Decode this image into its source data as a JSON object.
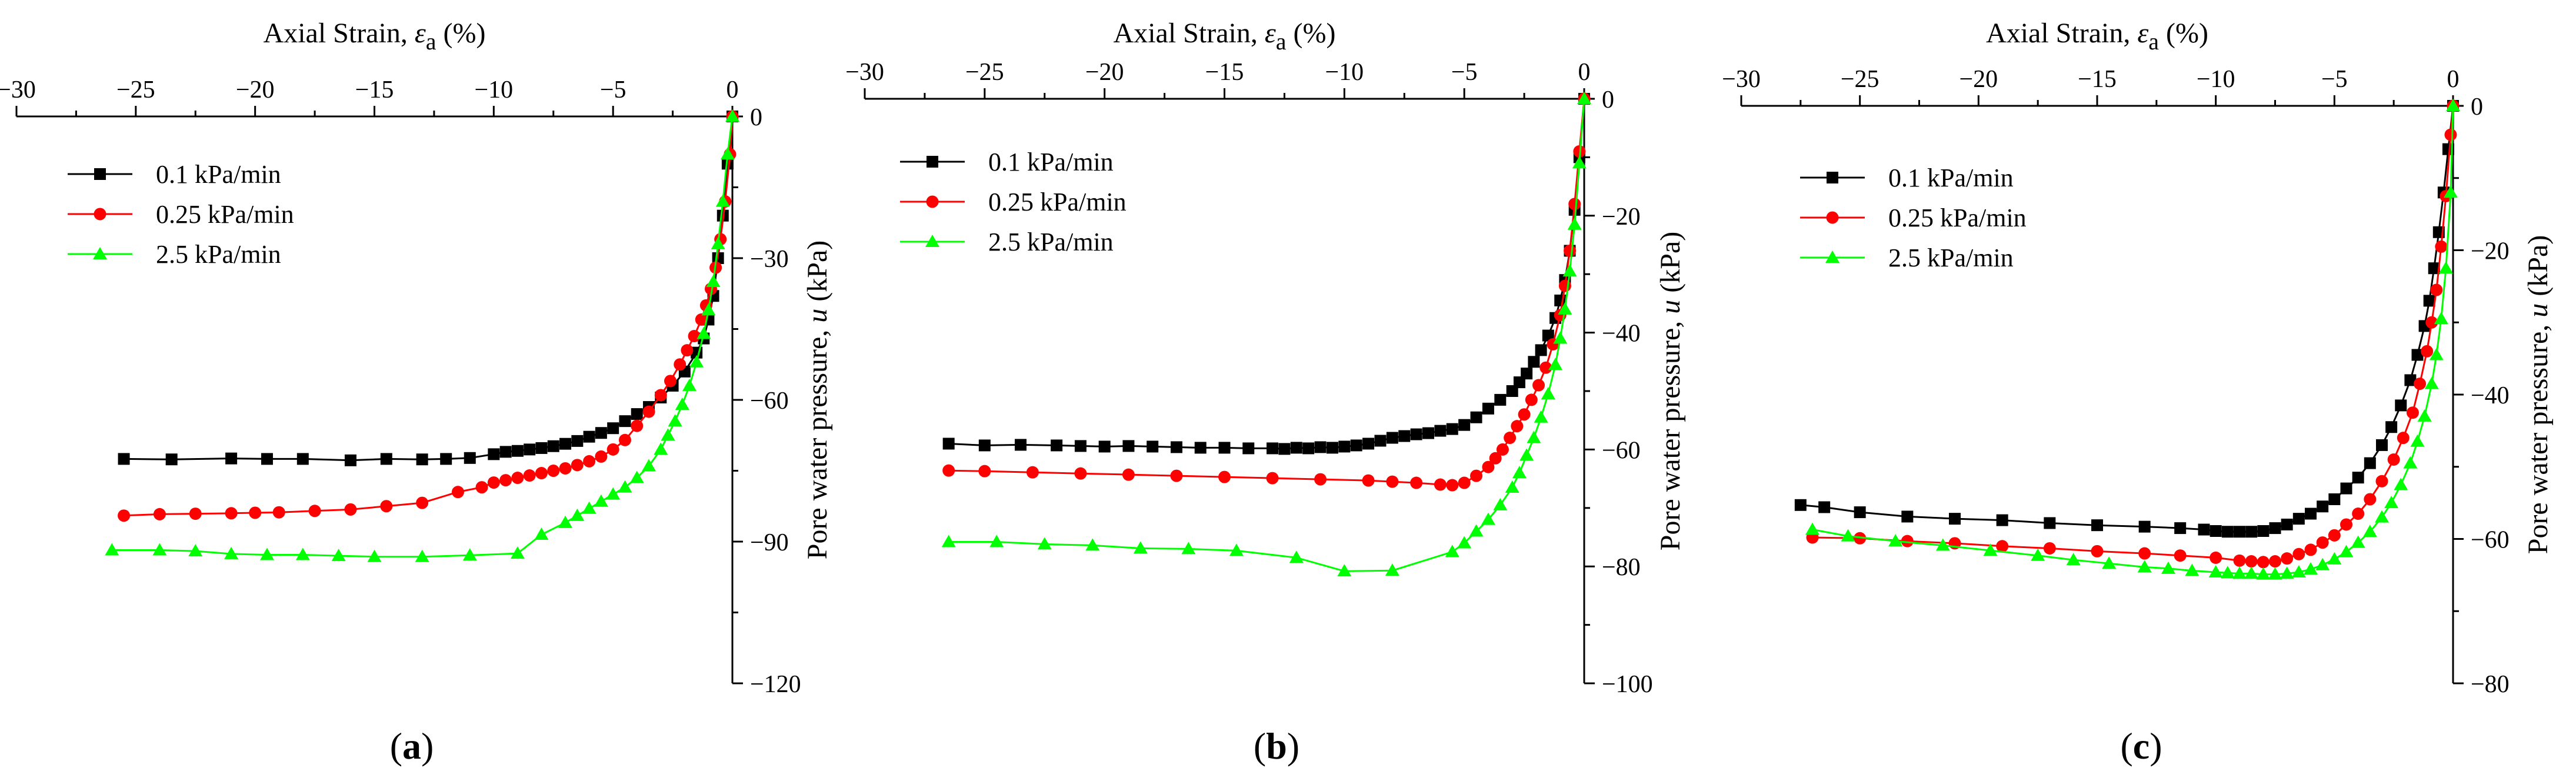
{
  "series_styles": [
    {
      "color": "#000000",
      "marker": "square"
    },
    {
      "color": "#ff0000",
      "marker": "circle"
    },
    {
      "color": "#00ff00",
      "marker": "triangle"
    }
  ],
  "chart_data": [
    {
      "type": "line",
      "panel_label": "a",
      "xlabel_main": "Axial Strain, ",
      "xlabel_symbol": "ε",
      "xlabel_sub": "a",
      "xlabel_unit": " (%)",
      "ylabel_main": "Pore water pressure, ",
      "ylabel_symbol": "u",
      "ylabel_unit": " (kPa)",
      "xlim": [
        -30,
        0
      ],
      "ylim": [
        -120,
        0
      ],
      "xticks": [
        -30,
        -25,
        -20,
        -15,
        -10,
        -5,
        0
      ],
      "yticks": [
        0,
        -30,
        -60,
        -90,
        -120
      ],
      "legend_position": "top-left",
      "series": [
        {
          "name": "0.1  kPa/min",
          "x": [
            -25.5,
            -23.5,
            -21,
            -19.5,
            -18,
            -16,
            -14.5,
            -13,
            -12,
            -11,
            -10,
            -9.5,
            -9,
            -8.5,
            -8,
            -7.5,
            -7,
            -6.5,
            -6,
            -5.5,
            -5,
            -4.5,
            -4,
            -3.5,
            -3,
            -2.5,
            -2,
            -1.5,
            -1.2,
            -1,
            -0.8,
            -0.6,
            -0.4,
            -0.2,
            0
          ],
          "y": [
            -72.5,
            -72.6,
            -72.4,
            -72.5,
            -72.5,
            -72.8,
            -72.5,
            -72.6,
            -72.5,
            -72.3,
            -71.5,
            -71,
            -70.8,
            -70.5,
            -70.2,
            -69.8,
            -69.3,
            -68.7,
            -67.8,
            -67,
            -66,
            -64.5,
            -63,
            -61.5,
            -59.5,
            -57,
            -54,
            -50,
            -47,
            -43,
            -38,
            -30,
            -21,
            -10,
            0
          ]
        },
        {
          "name": "0.25 kPa/min",
          "x": [
            -25.5,
            -24,
            -22.5,
            -21,
            -20,
            -19,
            -17.5,
            -16,
            -14.5,
            -13,
            -11.5,
            -10.5,
            -10,
            -9.5,
            -9,
            -8.5,
            -8,
            -7.5,
            -7,
            -6.5,
            -6,
            -5.5,
            -5,
            -4.5,
            -4,
            -3.5,
            -3,
            -2.6,
            -2.2,
            -1.9,
            -1.6,
            -1.3,
            -1.1,
            -0.9,
            -0.7,
            -0.5,
            -0.3,
            -0.1,
            0
          ],
          "y": [
            -84.5,
            -84.2,
            -84.1,
            -84,
            -83.9,
            -83.8,
            -83.5,
            -83.2,
            -82.5,
            -81.8,
            -79.5,
            -78.5,
            -77.5,
            -77,
            -76.5,
            -76,
            -75.5,
            -75,
            -74.5,
            -73.8,
            -73,
            -72,
            -70.5,
            -68.5,
            -65.5,
            -62.5,
            -59,
            -56,
            -52.5,
            -49.5,
            -46.5,
            -43,
            -40,
            -36.5,
            -32,
            -26,
            -18,
            -8,
            0
          ]
        },
        {
          "name": "2.5  kPa/min",
          "x": [
            -26,
            -24,
            -22.5,
            -21,
            -19.5,
            -18,
            -16.5,
            -15,
            -13,
            -11,
            -9,
            -8,
            -7,
            -6.5,
            -6,
            -5.5,
            -5,
            -4.5,
            -4,
            -3.5,
            -3,
            -2.7,
            -2.4,
            -2.1,
            -1.8,
            -1.5,
            -1.2,
            -1,
            -0.8,
            -0.6,
            -0.4,
            -0.2,
            0
          ],
          "y": [
            -91.8,
            -91.8,
            -92,
            -92.6,
            -92.8,
            -92.8,
            -93,
            -93.2,
            -93.2,
            -92.9,
            -92.5,
            -88.5,
            -86,
            -84.5,
            -83,
            -81.5,
            -80,
            -78.5,
            -76.5,
            -74,
            -70.5,
            -67.5,
            -64.5,
            -61,
            -57,
            -52,
            -46,
            -41,
            -35,
            -27,
            -18,
            -8,
            0
          ]
        }
      ]
    },
    {
      "type": "line",
      "panel_label": "b",
      "xlabel_main": "Axial Strain, ",
      "xlabel_symbol": "ε",
      "xlabel_sub": "a",
      "xlabel_unit": " (%)",
      "ylabel_main": "Pore water pressure, ",
      "ylabel_symbol": "u",
      "ylabel_unit": " (kPa)",
      "xlim": [
        -30,
        0
      ],
      "ylim": [
        -100,
        0
      ],
      "xticks": [
        -30,
        -25,
        -20,
        -15,
        -10,
        -5,
        0
      ],
      "yticks": [
        0,
        -20,
        -40,
        -60,
        -80,
        -100
      ],
      "legend_position": "top-left",
      "series": [
        {
          "name": "0.1  kPa/min",
          "x": [
            -26.5,
            -25,
            -23.5,
            -22,
            -21,
            -20,
            -19,
            -18,
            -17,
            -16,
            -15,
            -14,
            -13,
            -12.5,
            -12,
            -11.5,
            -11,
            -10.5,
            -10,
            -9.5,
            -9,
            -8.5,
            -8,
            -7.5,
            -7,
            -6.5,
            -6,
            -5.5,
            -5,
            -4.5,
            -4,
            -3.5,
            -3,
            -2.7,
            -2.4,
            -2.1,
            -1.8,
            -1.5,
            -1.2,
            -1,
            -0.8,
            -0.6,
            -0.4,
            -0.2,
            0
          ],
          "y": [
            -59,
            -59.3,
            -59.2,
            -59.3,
            -59.4,
            -59.5,
            -59.4,
            -59.5,
            -59.6,
            -59.7,
            -59.7,
            -59.8,
            -59.8,
            -59.9,
            -59.7,
            -59.8,
            -59.6,
            -59.7,
            -59.5,
            -59.3,
            -59,
            -58.5,
            -58,
            -57.7,
            -57.4,
            -57.2,
            -56.8,
            -56.5,
            -55.8,
            -54.5,
            -53,
            -51.5,
            -50,
            -48.5,
            -47,
            -45,
            -43,
            -40.5,
            -37.5,
            -34.5,
            -31,
            -26,
            -19,
            -10,
            0
          ]
        },
        {
          "name": "0.25 kPa/min",
          "x": [
            -26.5,
            -25,
            -23,
            -21,
            -19,
            -17,
            -15,
            -13,
            -11,
            -9,
            -8,
            -7,
            -6,
            -5.5,
            -5,
            -4.5,
            -4,
            -3.7,
            -3.4,
            -3.1,
            -2.8,
            -2.5,
            -2.2,
            -1.9,
            -1.6,
            -1.3,
            -1,
            -0.8,
            -0.6,
            -0.4,
            -0.2,
            0
          ],
          "y": [
            -63.6,
            -63.7,
            -63.9,
            -64.1,
            -64.3,
            -64.5,
            -64.7,
            -64.9,
            -65.1,
            -65.3,
            -65.5,
            -65.7,
            -66,
            -66.1,
            -65.7,
            -64.5,
            -63,
            -61.5,
            -60,
            -58,
            -56,
            -54,
            -51.5,
            -49,
            -46,
            -42,
            -37,
            -32,
            -26,
            -18,
            -9,
            0
          ]
        },
        {
          "name": "2.5  kPa/min",
          "x": [
            -26.5,
            -24.5,
            -22.5,
            -20.5,
            -18.5,
            -16.5,
            -14.5,
            -12,
            -10,
            -8,
            -5.5,
            -5,
            -4.5,
            -4,
            -3.5,
            -3,
            -2.7,
            -2.4,
            -2.1,
            -1.8,
            -1.5,
            -1.2,
            -1,
            -0.8,
            -0.6,
            -0.4,
            -0.2,
            0
          ],
          "y": [
            -75.8,
            -75.8,
            -76.2,
            -76.4,
            -76.9,
            -77,
            -77.3,
            -78.5,
            -80.8,
            -80.7,
            -77.5,
            -76,
            -74,
            -72,
            -69.5,
            -66.5,
            -64,
            -61,
            -58,
            -54.5,
            -50.5,
            -45.5,
            -41,
            -36,
            -29.5,
            -21.5,
            -11,
            0
          ]
        }
      ]
    },
    {
      "type": "line",
      "panel_label": "c",
      "xlabel_main": "Axial Strain, ",
      "xlabel_symbol": "ε",
      "xlabel_sub": "a",
      "xlabel_unit": " (%)",
      "ylabel_main": "Pore water pressure, ",
      "ylabel_symbol": "u",
      "ylabel_unit": " (kPa)",
      "xlim": [
        -30,
        0
      ],
      "ylim": [
        -80,
        0
      ],
      "xticks": [
        -30,
        -25,
        -20,
        -15,
        -10,
        -5,
        0
      ],
      "yticks": [
        0,
        -20,
        -40,
        -60,
        -80
      ],
      "legend_position": "top-left",
      "series": [
        {
          "name": "0.1  kPa/min",
          "x": [
            -27.5,
            -26.5,
            -25,
            -23,
            -21,
            -19,
            -17,
            -15,
            -13,
            -11.5,
            -10.5,
            -10,
            -9.5,
            -9,
            -8.5,
            -8,
            -7.5,
            -7,
            -6.5,
            -6,
            -5.5,
            -5,
            -4.5,
            -4,
            -3.5,
            -3,
            -2.6,
            -2.2,
            -1.8,
            -1.5,
            -1.2,
            -1,
            -0.8,
            -0.6,
            -0.4,
            -0.2,
            0
          ],
          "y": [
            -55.3,
            -55.6,
            -56.3,
            -56.9,
            -57.2,
            -57.4,
            -57.8,
            -58.1,
            -58.3,
            -58.5,
            -58.7,
            -58.9,
            -59,
            -59,
            -59,
            -58.9,
            -58.5,
            -58,
            -57.2,
            -56.5,
            -55.5,
            -54.5,
            -53,
            -51.5,
            -49.5,
            -47,
            -44.5,
            -41.5,
            -38,
            -34.5,
            -30.5,
            -27,
            -22.5,
            -17.5,
            -12,
            -6,
            0
          ]
        },
        {
          "name": "0.25 kPa/min",
          "x": [
            -27,
            -25,
            -23,
            -21,
            -19,
            -17,
            -15,
            -13,
            -11.5,
            -10,
            -9,
            -8.5,
            -8,
            -7.5,
            -7,
            -6.5,
            -6,
            -5.5,
            -5,
            -4.5,
            -4,
            -3.5,
            -3,
            -2.5,
            -2.1,
            -1.7,
            -1.4,
            -1.1,
            -0.9,
            -0.7,
            -0.5,
            -0.3,
            -0.1,
            0
          ],
          "y": [
            -59.8,
            -59.9,
            -60.3,
            -60.6,
            -61,
            -61.3,
            -61.7,
            -62,
            -62.3,
            -62.6,
            -63,
            -63.1,
            -63.2,
            -63.1,
            -62.7,
            -62.1,
            -61.5,
            -60.5,
            -59.5,
            -58,
            -56.5,
            -54.5,
            -52,
            -49,
            -46,
            -42.5,
            -38.5,
            -34,
            -30,
            -25.5,
            -19.5,
            -12.5,
            -4,
            0
          ]
        },
        {
          "name": "2.5  kPa/min",
          "x": [
            -27,
            -25.5,
            -23.5,
            -21.5,
            -19.5,
            -17.5,
            -16,
            -14.5,
            -13,
            -12,
            -11,
            -10,
            -9.5,
            -9,
            -8.5,
            -8,
            -7.5,
            -7,
            -6.5,
            -6,
            -5.5,
            -5,
            -4.5,
            -4,
            -3.5,
            -3,
            -2.6,
            -2.2,
            -1.8,
            -1.5,
            -1.2,
            -0.9,
            -0.7,
            -0.5,
            -0.3,
            -0.1,
            0
          ],
          "y": [
            -58.7,
            -59.6,
            -60.3,
            -60.9,
            -61.6,
            -62.3,
            -62.9,
            -63.4,
            -63.9,
            -64.1,
            -64.4,
            -64.6,
            -64.7,
            -64.8,
            -64.8,
            -64.9,
            -64.9,
            -64.8,
            -64.6,
            -64.2,
            -63.6,
            -62.8,
            -61.8,
            -60.5,
            -59,
            -57,
            -55,
            -52.5,
            -49.5,
            -46.5,
            -43,
            -38.5,
            -34.5,
            -29.5,
            -22.5,
            -12,
            0
          ]
        }
      ]
    }
  ]
}
